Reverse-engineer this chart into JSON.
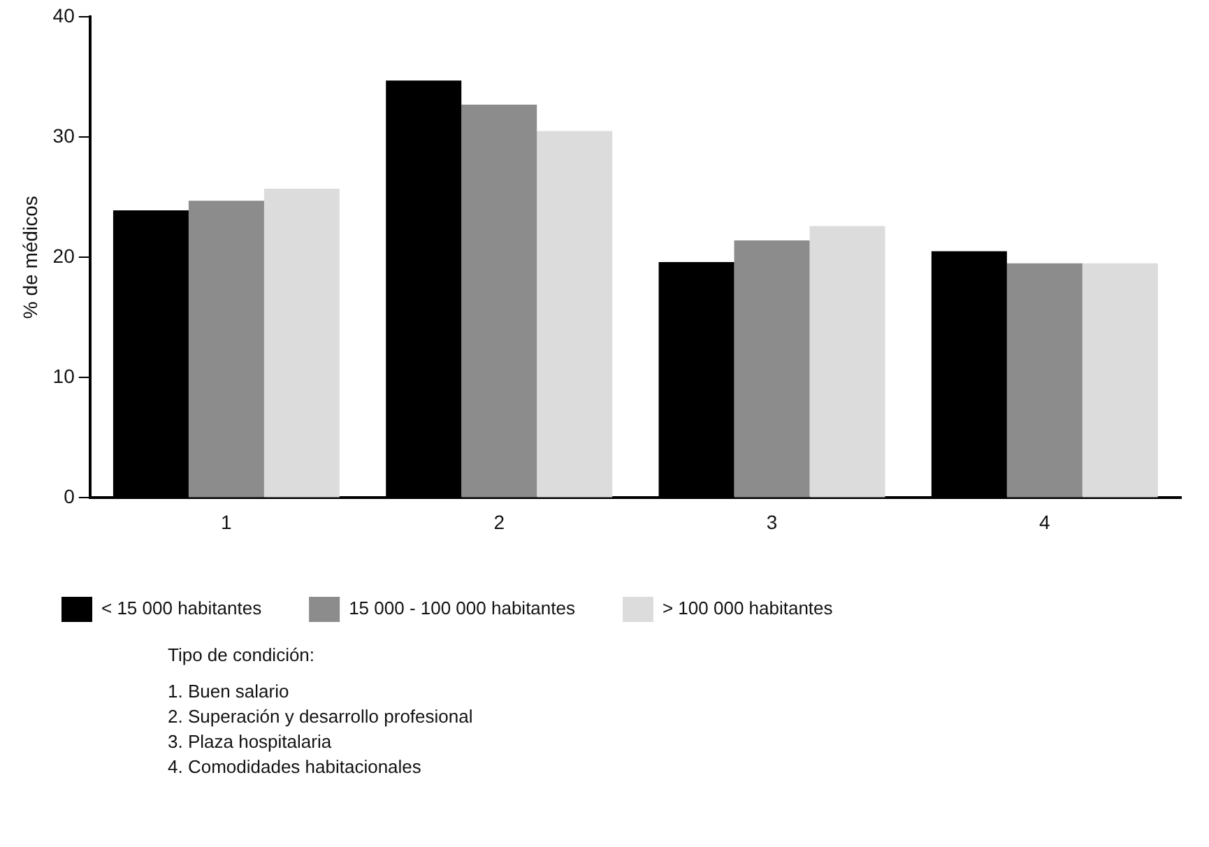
{
  "chart_data": {
    "type": "bar",
    "ylabel": "% de médicos",
    "categories": [
      "1",
      "2",
      "3",
      "4"
    ],
    "series": [
      {
        "name": "< 15 000 habitantes",
        "color": "#000000",
        "values": [
          23.9,
          34.7,
          19.6,
          20.5
        ]
      },
      {
        "name": "15 000 - 100 000 habitantes",
        "color": "#8c8c8c",
        "values": [
          24.7,
          32.7,
          21.4,
          19.5
        ]
      },
      {
        "name": "> 100 000 habitantes",
        "color": "#dcdcdc",
        "values": [
          25.7,
          30.5,
          22.6,
          19.5
        ]
      }
    ],
    "ylim": [
      0,
      40
    ],
    "yticks": [
      0,
      10,
      20,
      30,
      40
    ],
    "grid": false,
    "legend": "bottom",
    "annotations": [
      "Tipo de condición:",
      "1. Buen salario",
      "2. Superación y desarrollo profesional",
      "3. Plaza hospitalaria",
      "4. Comodidades habitacionales"
    ]
  }
}
